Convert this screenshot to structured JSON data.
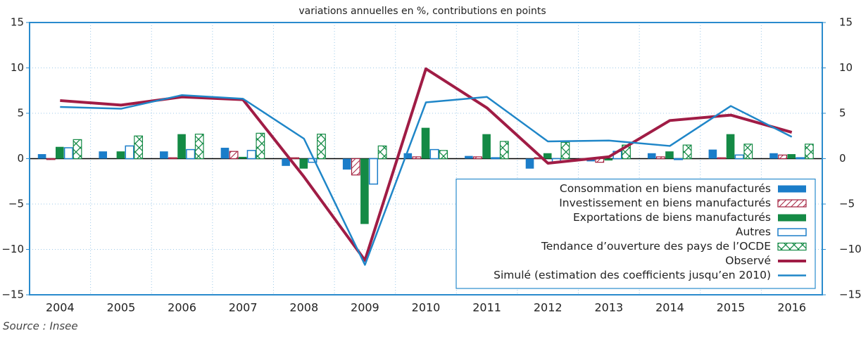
{
  "chart_data": {
    "type": "bar",
    "subtitle": "variations annuelles en %, contributions en points",
    "source": "Source : Insee",
    "categories": [
      "2004",
      "2005",
      "2006",
      "2007",
      "2008",
      "2009",
      "2010",
      "2011",
      "2012",
      "2013",
      "2014",
      "2015",
      "2016"
    ],
    "series": [
      {
        "name": "Consommation en biens manufacturés",
        "type": "bar",
        "fill": "solid",
        "color": "#1b7dc9",
        "values": [
          0.5,
          0.8,
          0.8,
          1.2,
          -0.8,
          -1.2,
          0.6,
          0.3,
          -1.1,
          -0.3,
          0.6,
          1.0,
          0.6
        ]
      },
      {
        "name": "Investissement en biens manufacturés",
        "type": "bar",
        "fill": "hatch",
        "color": "#a3203e",
        "values": [
          -0.1,
          0,
          0.1,
          0.8,
          0.1,
          -1.8,
          0.2,
          0.2,
          0.1,
          -0.4,
          0.2,
          0.1,
          0.4
        ]
      },
      {
        "name": "Exportations de biens manufacturés",
        "type": "bar",
        "fill": "solid",
        "color": "#148a45",
        "values": [
          1.3,
          0.8,
          2.7,
          0.2,
          -1.1,
          -7.2,
          3.4,
          2.7,
          0.6,
          -0.2,
          0.8,
          2.7,
          0.5
        ]
      },
      {
        "name": "Autres",
        "type": "bar",
        "fill": "outline",
        "color": "#1b7dc9",
        "values": [
          1.2,
          1.4,
          1.0,
          0.9,
          -0.4,
          -2.8,
          1.0,
          0.1,
          -0.4,
          0.8,
          -0.1,
          0.4,
          0.1
        ]
      },
      {
        "name": "Tendance d’ouverture des pays de l’OCDE",
        "type": "bar",
        "fill": "crosshatch",
        "color": "#148a45",
        "values": [
          2.1,
          2.5,
          2.7,
          2.8,
          2.7,
          1.4,
          0.9,
          1.9,
          1.8,
          1.5,
          1.5,
          1.6,
          1.6
        ]
      },
      {
        "name": "Observé",
        "type": "line",
        "color": "#a01c45",
        "width": 4,
        "values": [
          6.4,
          5.9,
          6.8,
          6.5,
          -2.0,
          -11.2,
          9.9,
          5.6,
          -0.5,
          0.2,
          4.2,
          4.8,
          2.9
        ]
      },
      {
        "name": "Simulé (estimation des coefficients jusqu’en 2010)",
        "type": "line",
        "color": "#1f86c8",
        "width": 2.5,
        "values": [
          5.7,
          5.5,
          7.0,
          6.6,
          2.2,
          -11.7,
          6.2,
          6.8,
          1.9,
          2.0,
          1.4,
          5.8,
          2.4
        ]
      }
    ],
    "ylim": [
      -15,
      15
    ],
    "yticks": [
      {
        "value": -15,
        "label": "−15"
      },
      {
        "value": -10,
        "label": "−10"
      },
      {
        "value": -5,
        "label": "−5"
      },
      0,
      5,
      10,
      15
    ],
    "y2lim": [
      -15,
      15
    ],
    "y2ticks": [
      {
        "value": -15,
        "label": "−15"
      },
      {
        "value": -10,
        "label": "−10"
      },
      {
        "value": -5,
        "label": "−5"
      },
      0,
      5,
      10,
      15
    ],
    "grid": true,
    "legend": "lower right"
  }
}
